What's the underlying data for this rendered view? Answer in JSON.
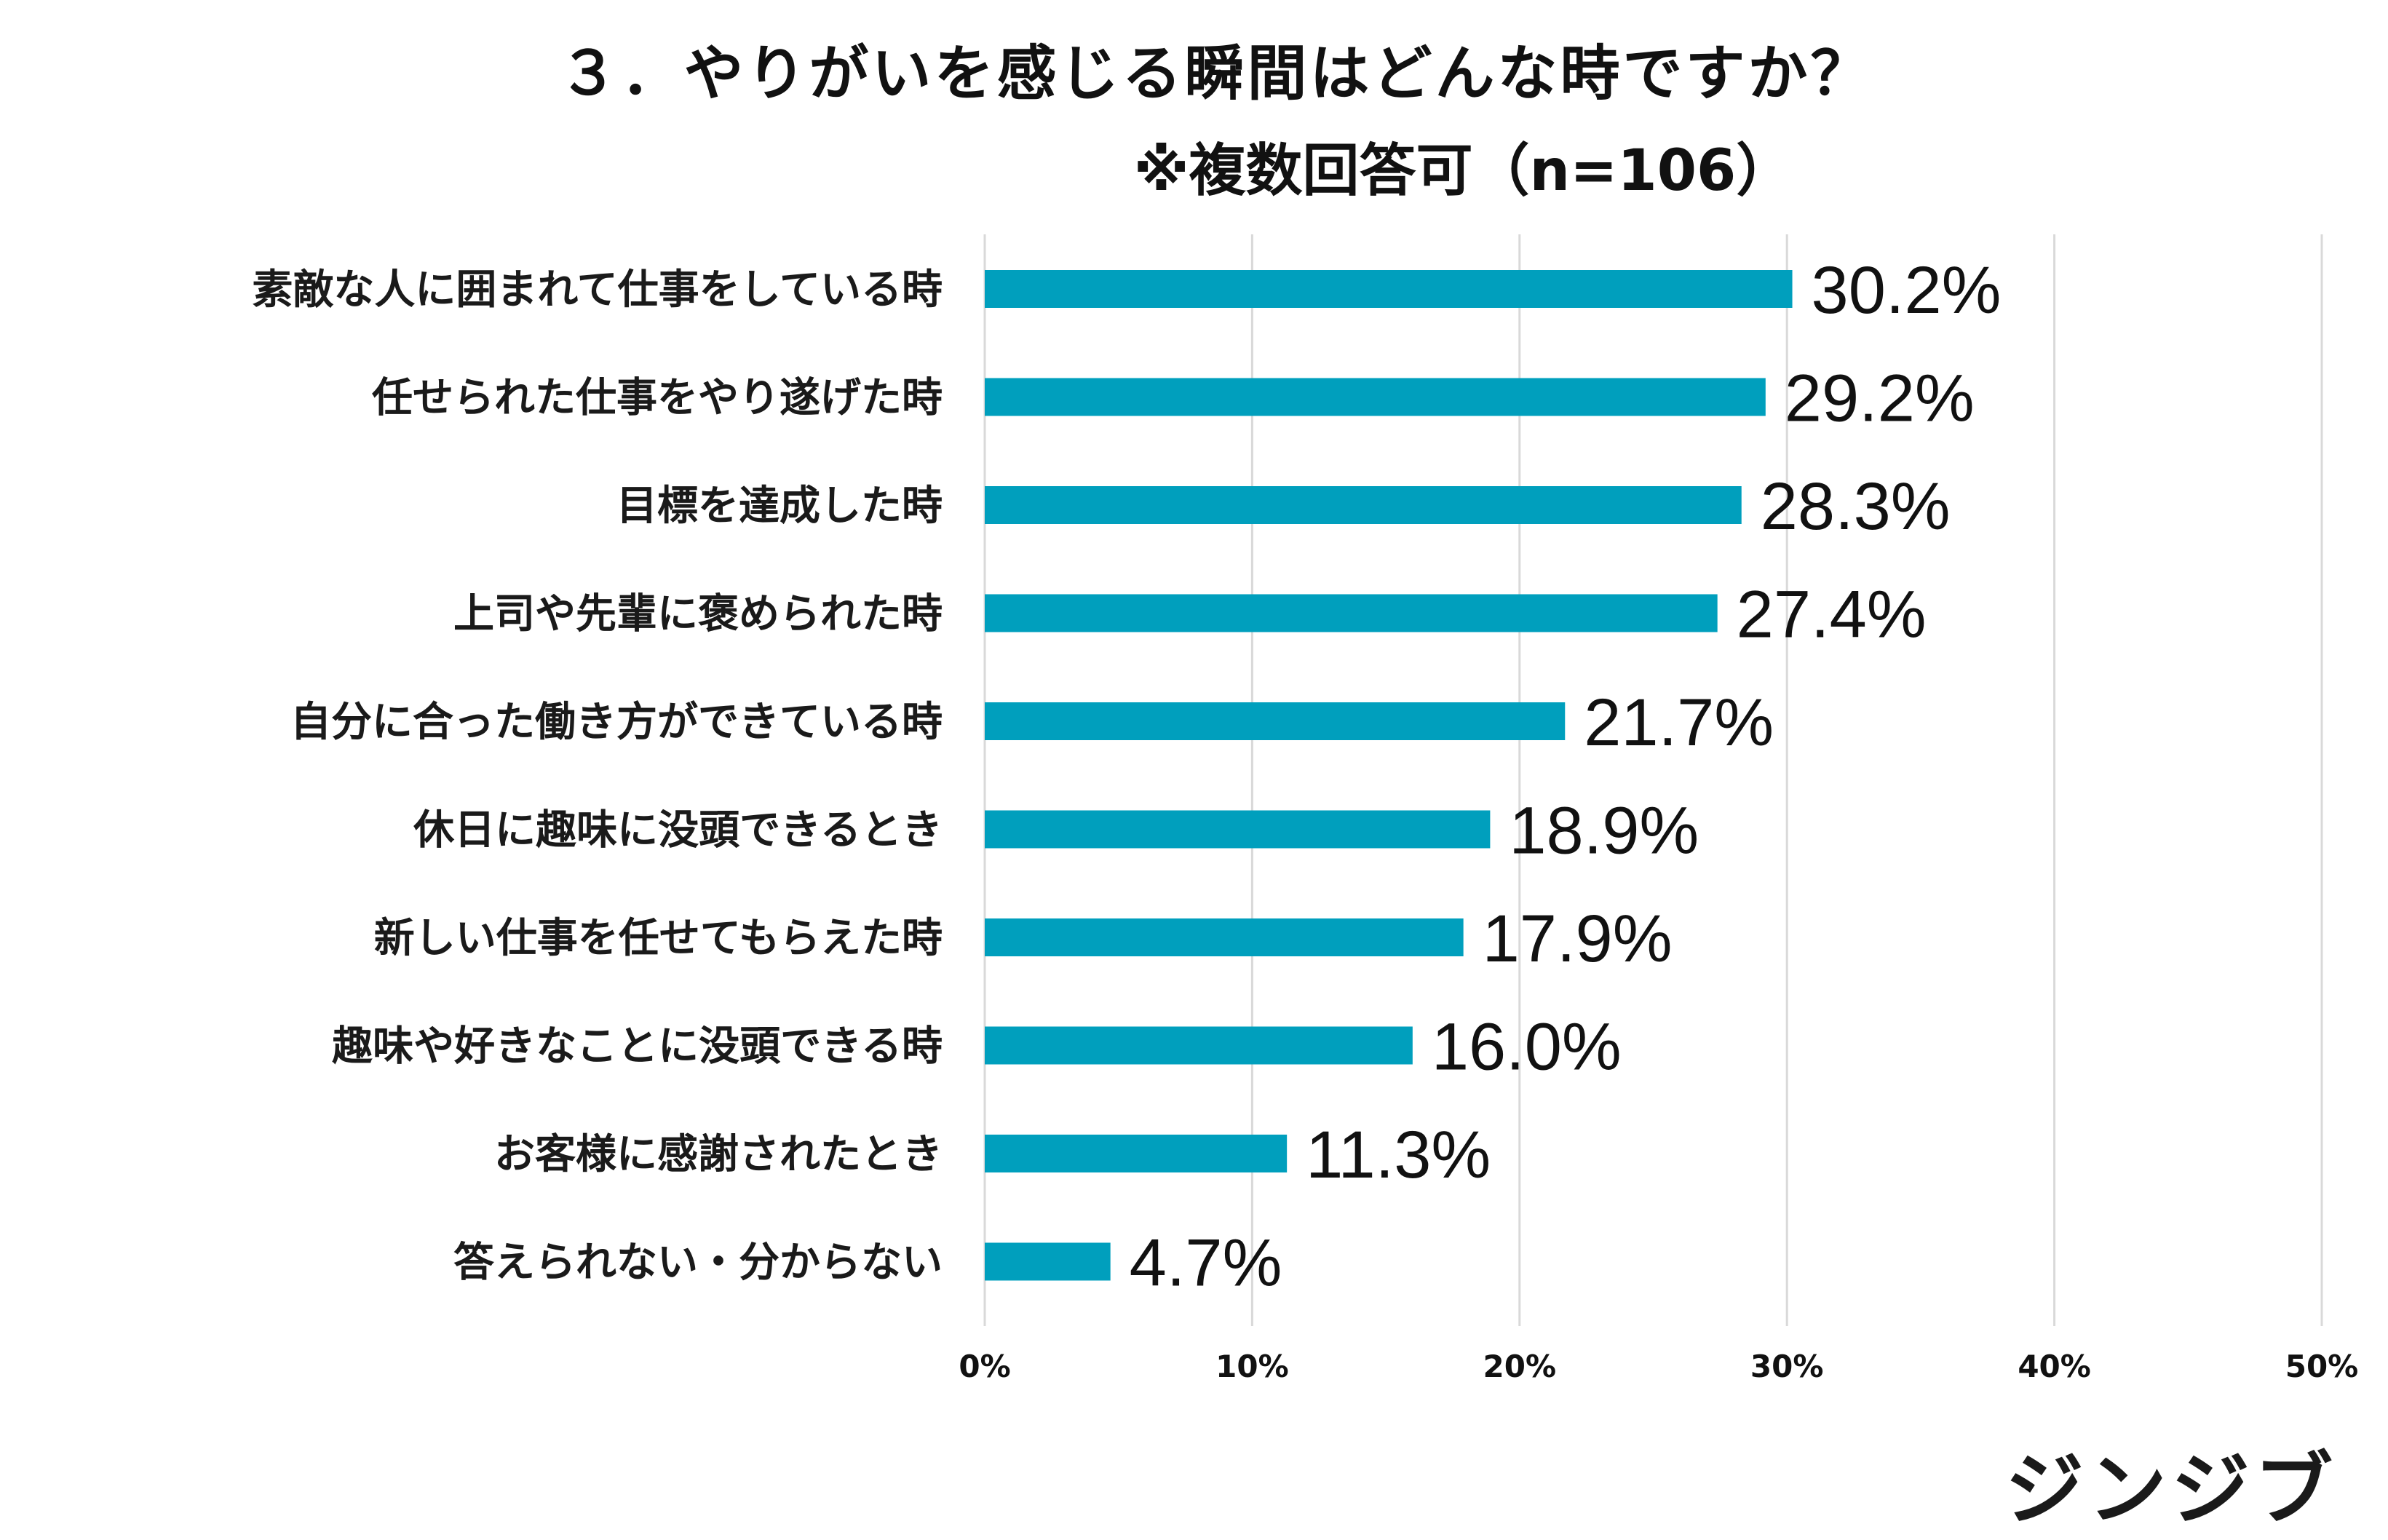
{
  "chart_data": {
    "type": "bar",
    "orientation": "horizontal",
    "title": "３．やりがいを感じる瞬間はどんな時ですか？",
    "subtitle": "※複数回答可（n=106）",
    "categories": [
      "素敵な人に囲まれて仕事をしている時",
      "任せられた仕事をやり遂げた時",
      "目標を達成した時",
      "上司や先輩に褒められた時",
      "自分に合った働き方ができている時",
      "休日に趣味に没頭できるとき",
      "新しい仕事を任せてもらえた時",
      "趣味や好きなことに没頭できる時",
      "お客様に感謝されたとき",
      "答えられない・分からない"
    ],
    "values": [
      30.2,
      29.2,
      28.3,
      27.4,
      21.7,
      18.9,
      17.9,
      16.0,
      11.3,
      4.7
    ],
    "value_labels": [
      "30.2%",
      "29.2%",
      "28.3%",
      "27.4%",
      "21.7%",
      "18.9%",
      "17.9%",
      "16.0%",
      "11.3%",
      "4.7%"
    ],
    "xlim": [
      0,
      50
    ],
    "x_ticks": [
      0,
      10,
      20,
      30,
      40,
      50
    ],
    "x_tick_labels": [
      "0%",
      "10%",
      "20%",
      "30%",
      "40%",
      "50%"
    ],
    "grid": true,
    "legend": "none",
    "bar_color": "#009fbd",
    "grid_color": "#d9d9d9"
  },
  "brand": {
    "logo_text": "ジンジブ"
  }
}
